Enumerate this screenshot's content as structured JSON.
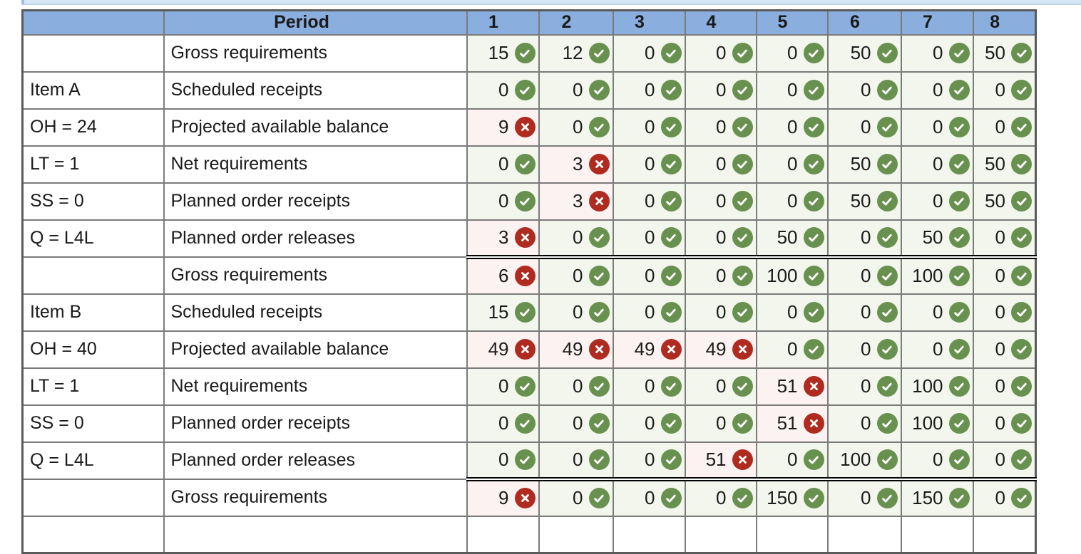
{
  "window": {
    "top_strip": {
      "visible": true
    }
  },
  "table": {
    "header": {
      "corner": "",
      "period": "Period",
      "columns": [
        "1",
        "2",
        "3",
        "4",
        "5",
        "6",
        "7",
        "8"
      ]
    },
    "groups": [
      {
        "item": "Item A",
        "labels": [
          "",
          "Item A",
          "OH = 24",
          "LT = 1",
          "SS = 0",
          "Q = L4L"
        ],
        "rows": [
          {
            "desc": "Gross requirements",
            "cells": [
              [
                "15",
                "ok"
              ],
              [
                "12",
                "ok"
              ],
              [
                "0",
                "ok"
              ],
              [
                "0",
                "ok"
              ],
              [
                "0",
                "ok"
              ],
              [
                "50",
                "ok"
              ],
              [
                "0",
                "ok"
              ],
              [
                "50",
                "ok"
              ]
            ]
          },
          {
            "desc": "Scheduled receipts",
            "cells": [
              [
                "0",
                "ok"
              ],
              [
                "0",
                "ok"
              ],
              [
                "0",
                "ok"
              ],
              [
                "0",
                "ok"
              ],
              [
                "0",
                "ok"
              ],
              [
                "0",
                "ok"
              ],
              [
                "0",
                "ok"
              ],
              [
                "0",
                "ok"
              ]
            ]
          },
          {
            "desc": "Projected available balance",
            "cells": [
              [
                "9",
                "bad"
              ],
              [
                "0",
                "ok"
              ],
              [
                "0",
                "ok"
              ],
              [
                "0",
                "ok"
              ],
              [
                "0",
                "ok"
              ],
              [
                "0",
                "ok"
              ],
              [
                "0",
                "ok"
              ],
              [
                "0",
                "ok"
              ]
            ]
          },
          {
            "desc": "Net requirements",
            "cells": [
              [
                "0",
                "ok"
              ],
              [
                "3",
                "bad"
              ],
              [
                "0",
                "ok"
              ],
              [
                "0",
                "ok"
              ],
              [
                "0",
                "ok"
              ],
              [
                "50",
                "ok"
              ],
              [
                "0",
                "ok"
              ],
              [
                "50",
                "ok"
              ]
            ]
          },
          {
            "desc": "Planned order receipts",
            "cells": [
              [
                "0",
                "ok"
              ],
              [
                "3",
                "bad"
              ],
              [
                "0",
                "ok"
              ],
              [
                "0",
                "ok"
              ],
              [
                "0",
                "ok"
              ],
              [
                "50",
                "ok"
              ],
              [
                "0",
                "ok"
              ],
              [
                "50",
                "ok"
              ]
            ]
          },
          {
            "desc": "Planned order releases",
            "cells": [
              [
                "3",
                "bad"
              ],
              [
                "0",
                "ok"
              ],
              [
                "0",
                "ok"
              ],
              [
                "0",
                "ok"
              ],
              [
                "50",
                "ok"
              ],
              [
                "0",
                "ok"
              ],
              [
                "50",
                "ok"
              ],
              [
                "0",
                "ok"
              ]
            ]
          }
        ]
      },
      {
        "item": "Item B",
        "labels": [
          "",
          "Item B",
          "OH = 40",
          "LT = 1",
          "SS = 0",
          "Q = L4L"
        ],
        "rows": [
          {
            "desc": "Gross requirements",
            "cells": [
              [
                "6",
                "bad"
              ],
              [
                "0",
                "ok"
              ],
              [
                "0",
                "ok"
              ],
              [
                "0",
                "ok"
              ],
              [
                "100",
                "ok"
              ],
              [
                "0",
                "ok"
              ],
              [
                "100",
                "ok"
              ],
              [
                "0",
                "ok"
              ]
            ]
          },
          {
            "desc": "Scheduled receipts",
            "cells": [
              [
                "15",
                "ok"
              ],
              [
                "0",
                "ok"
              ],
              [
                "0",
                "ok"
              ],
              [
                "0",
                "ok"
              ],
              [
                "0",
                "ok"
              ],
              [
                "0",
                "ok"
              ],
              [
                "0",
                "ok"
              ],
              [
                "0",
                "ok"
              ]
            ]
          },
          {
            "desc": "Projected available balance",
            "cells": [
              [
                "49",
                "bad"
              ],
              [
                "49",
                "bad"
              ],
              [
                "49",
                "bad"
              ],
              [
                "49",
                "bad"
              ],
              [
                "0",
                "ok"
              ],
              [
                "0",
                "ok"
              ],
              [
                "0",
                "ok"
              ],
              [
                "0",
                "ok"
              ]
            ]
          },
          {
            "desc": "Net requirements",
            "cells": [
              [
                "0",
                "ok"
              ],
              [
                "0",
                "ok"
              ],
              [
                "0",
                "ok"
              ],
              [
                "0",
                "ok"
              ],
              [
                "51",
                "bad"
              ],
              [
                "0",
                "ok"
              ],
              [
                "100",
                "ok"
              ],
              [
                "0",
                "ok"
              ]
            ]
          },
          {
            "desc": "Planned order receipts",
            "cells": [
              [
                "0",
                "ok"
              ],
              [
                "0",
                "ok"
              ],
              [
                "0",
                "ok"
              ],
              [
                "0",
                "ok"
              ],
              [
                "51",
                "bad"
              ],
              [
                "0",
                "ok"
              ],
              [
                "100",
                "ok"
              ],
              [
                "0",
                "ok"
              ]
            ]
          },
          {
            "desc": "Planned order releases",
            "cells": [
              [
                "0",
                "ok"
              ],
              [
                "0",
                "ok"
              ],
              [
                "0",
                "ok"
              ],
              [
                "51",
                "bad"
              ],
              [
                "0",
                "ok"
              ],
              [
                "100",
                "ok"
              ],
              [
                "0",
                "ok"
              ],
              [
                "0",
                "ok"
              ]
            ]
          }
        ]
      },
      {
        "item": "",
        "labels": [
          ""
        ],
        "rows": [
          {
            "desc": "Gross requirements",
            "cells": [
              [
                "9",
                "bad"
              ],
              [
                "0",
                "ok"
              ],
              [
                "0",
                "ok"
              ],
              [
                "0",
                "ok"
              ],
              [
                "150",
                "ok"
              ],
              [
                "0",
                "ok"
              ],
              [
                "150",
                "ok"
              ],
              [
                "0",
                "ok"
              ]
            ]
          }
        ],
        "partial_next_row": true
      }
    ]
  },
  "icons": {
    "ok": "check-icon",
    "bad": "x-icon"
  },
  "colors": {
    "header_blue": "#8aaede",
    "ok_circle": "#68914f",
    "ok_cell_bg": "#f2f6ec",
    "bad_circle": "#b02b1f",
    "bad_cell_bg": "#fcf2f1",
    "border_gray": "#7b7b7b",
    "group_separator": "#000000",
    "top_strip": "#d8e7f8"
  }
}
